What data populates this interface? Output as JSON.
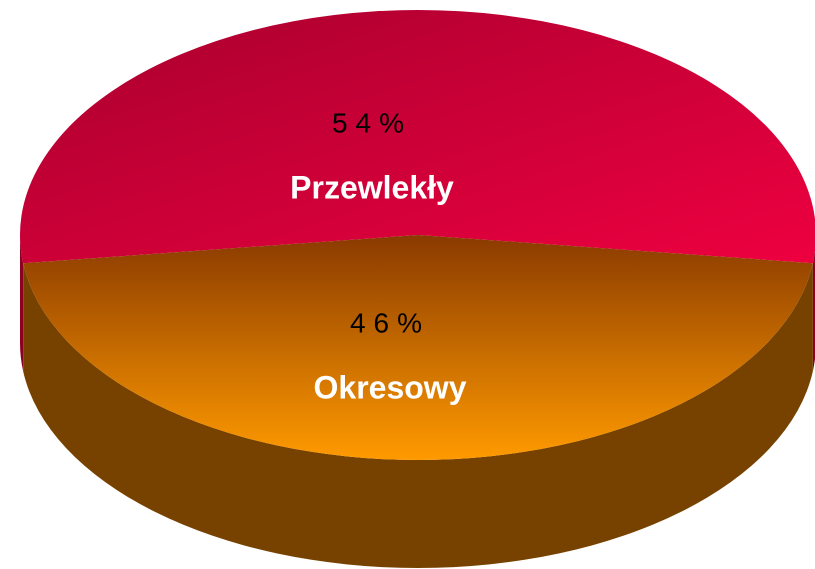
{
  "chart_data": {
    "type": "pie",
    "categories": [
      "Przewlekły",
      "Okresowy"
    ],
    "values": [
      54,
      46
    ],
    "value_labels": [
      "54%",
      "46%"
    ],
    "colors": [
      "#d8003a",
      "#f58c00"
    ]
  }
}
